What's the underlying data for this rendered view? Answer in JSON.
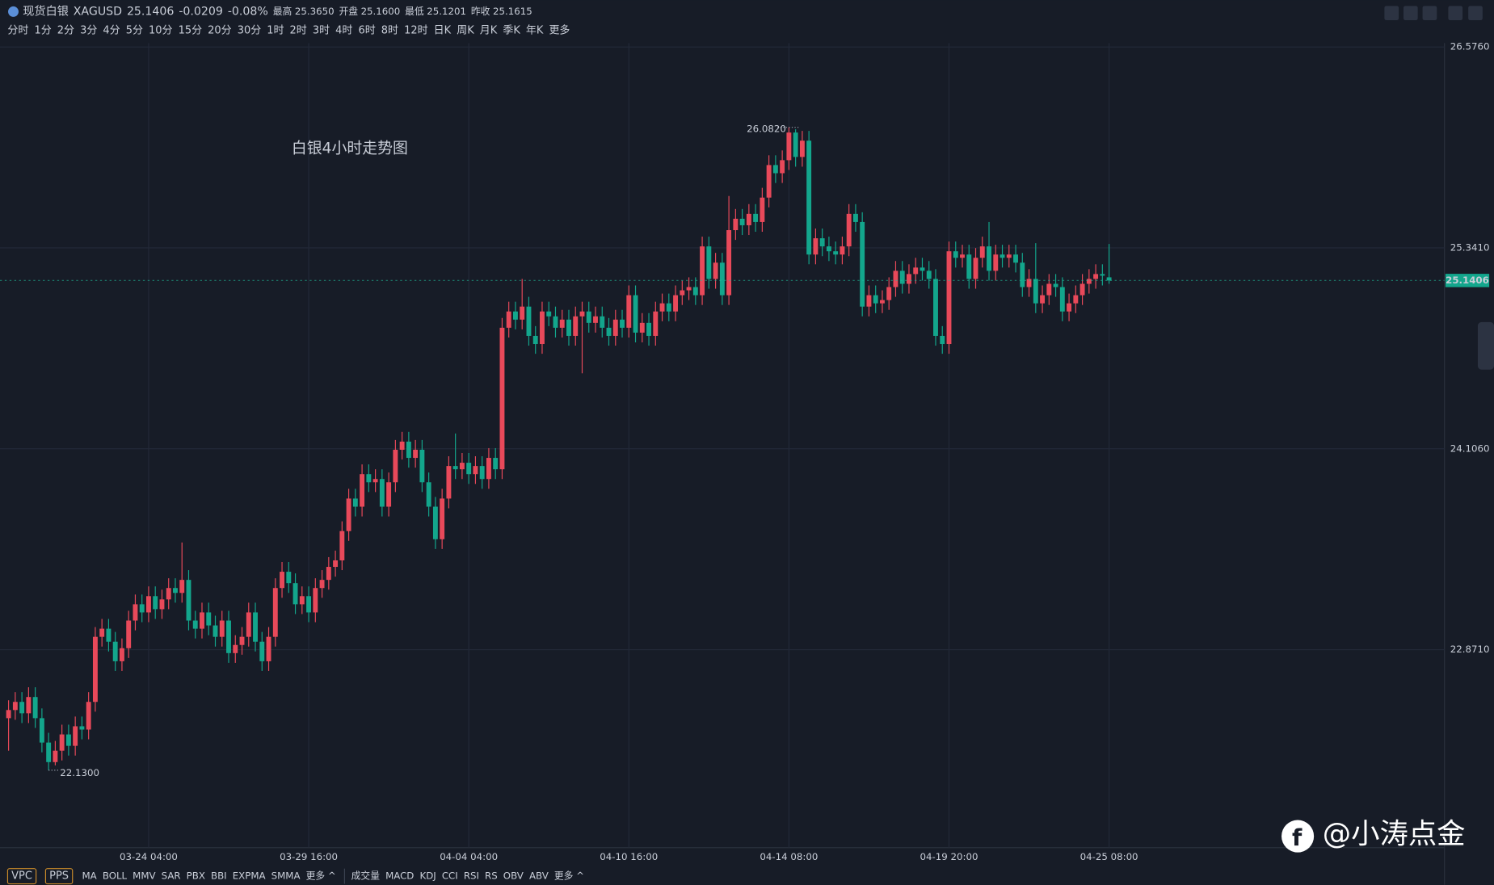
{
  "header": {
    "name": "现货白银",
    "symbol": "XAGUSD",
    "price": "25.1406",
    "change": "-0.0209",
    "change_pct": "-0.08%",
    "stats": [
      {
        "label": "最高",
        "value": "25.3650"
      },
      {
        "label": "开盘",
        "value": "25.1600"
      },
      {
        "label": "最低",
        "value": "25.1201"
      },
      {
        "label": "昨收",
        "value": "25.1615"
      }
    ]
  },
  "periods": {
    "items": [
      "分时",
      "1分",
      "2分",
      "3分",
      "4分",
      "5分",
      "10分",
      "15分",
      "20分",
      "30分",
      "1时",
      "2时",
      "3时",
      "4时",
      "6时",
      "8时",
      "12时",
      "日K",
      "周K",
      "月K",
      "季K",
      "年K",
      "更多"
    ],
    "active": "4时"
  },
  "indicators": {
    "boxed": [
      "VPC",
      "PPS"
    ],
    "main": [
      "MA",
      "BOLL",
      "MMV",
      "SAR",
      "PBX",
      "BBI",
      "EXPMA",
      "SMMA",
      "更多 ^"
    ],
    "sub": [
      "成交量",
      "MACD",
      "KDJ",
      "CCI",
      "RSI",
      "RS",
      "OBV",
      "ABV",
      "更多 ^"
    ]
  },
  "watermark": "@小涛点金",
  "chart_data": {
    "type": "candlestick",
    "annotation": "白银4小时走势图",
    "up_color": "#e8495a",
    "down_color": "#13a68c",
    "grid": true,
    "ylim": [
      21.654,
      26.6
    ],
    "yticks": [
      {
        "value": 26.576,
        "label": "26.5760"
      },
      {
        "value": 25.341,
        "label": "25.3410"
      },
      {
        "value": 24.106,
        "label": "24.1060"
      },
      {
        "value": 22.871,
        "label": "22.8710"
      }
    ],
    "price_line": {
      "value": 25.1406,
      "label": "25.1406"
    },
    "high_label": {
      "value": 26.082,
      "label": "26.0820"
    },
    "low_label": {
      "value": 22.13,
      "label": "22.1300"
    },
    "categories": [
      null,
      null,
      null,
      null,
      null,
      null,
      null,
      null,
      null,
      null,
      null,
      null,
      null,
      null,
      null,
      null,
      null,
      null,
      null,
      null,
      null,
      "03-24 04:00",
      null,
      null,
      null,
      null,
      null,
      null,
      null,
      null,
      null,
      null,
      null,
      null,
      null,
      null,
      null,
      null,
      null,
      null,
      null,
      null,
      null,
      null,
      null,
      "03-29 16:00",
      null,
      null,
      null,
      null,
      null,
      null,
      null,
      null,
      null,
      null,
      null,
      null,
      null,
      null,
      null,
      null,
      null,
      null,
      null,
      null,
      null,
      null,
      null,
      "04-04 04:00",
      null,
      null,
      null,
      null,
      null,
      null,
      null,
      null,
      null,
      null,
      null,
      null,
      null,
      null,
      null,
      null,
      null,
      null,
      null,
      null,
      null,
      null,
      null,
      "04-10 16:00",
      null,
      null,
      null,
      null,
      null,
      null,
      null,
      null,
      null,
      null,
      null,
      null,
      null,
      null,
      null,
      null,
      null,
      null,
      null,
      null,
      null,
      null,
      null,
      "04-14 08:00",
      null,
      null,
      null,
      null,
      null,
      null,
      null,
      null,
      null,
      null,
      null,
      null,
      null,
      null,
      null,
      null,
      null,
      null,
      null,
      null,
      null,
      null,
      null,
      "04-19 20:00",
      null,
      null,
      null,
      null,
      null,
      null,
      null,
      null,
      null,
      null,
      null,
      null,
      null,
      null,
      null,
      null,
      null,
      null,
      null,
      null,
      null,
      null,
      null,
      "04-25 08:00"
    ],
    "open": [
      22.45,
      22.5,
      22.55,
      22.48,
      22.58,
      22.45,
      22.3,
      22.18,
      22.25,
      22.35,
      22.28,
      22.4,
      22.38,
      22.55,
      22.95,
      23.0,
      22.92,
      22.8,
      22.88,
      23.05,
      23.15,
      23.1,
      23.2,
      23.12,
      23.18,
      23.25,
      23.22,
      23.3,
      23.05,
      23.0,
      23.1,
      23.02,
      22.95,
      23.05,
      22.85,
      22.9,
      22.95,
      23.1,
      22.92,
      22.8,
      22.95,
      23.25,
      23.35,
      23.28,
      23.15,
      23.2,
      23.1,
      23.25,
      23.3,
      23.38,
      23.42,
      23.6,
      23.8,
      23.75,
      23.95,
      23.9,
      23.92,
      23.75,
      23.9,
      24.1,
      24.15,
      24.05,
      24.1,
      23.9,
      23.75,
      23.55,
      23.8,
      24.0,
      23.98,
      24.02,
      23.95,
      24.0,
      23.92,
      24.05,
      23.98,
      24.85,
      24.95,
      24.9,
      24.98,
      24.8,
      24.75,
      24.95,
      24.92,
      24.85,
      24.9,
      24.8,
      24.92,
      24.95,
      24.88,
      24.92,
      24.85,
      24.8,
      24.9,
      24.85,
      25.05,
      24.82,
      24.88,
      24.8,
      24.95,
      25.0,
      24.95,
      25.05,
      25.08,
      25.1,
      25.05,
      25.35,
      25.15,
      25.25,
      25.05,
      25.45,
      25.52,
      25.48,
      25.55,
      25.5,
      25.65,
      25.85,
      25.8,
      25.88,
      26.05,
      25.9,
      26.0,
      25.3,
      25.4,
      25.35,
      25.32,
      25.3,
      25.35,
      25.55,
      25.5,
      24.98,
      25.05,
      25.0,
      25.02,
      25.1,
      25.2,
      25.12,
      25.18,
      25.22,
      25.2,
      25.15,
      24.8,
      24.75,
      25.32,
      25.28,
      25.3,
      25.15,
      25.28,
      25.35,
      25.2,
      25.3,
      25.28,
      25.3,
      25.25,
      25.1,
      25.15,
      25.0,
      25.05,
      25.12,
      25.1,
      24.95,
      25.0,
      25.05,
      25.12,
      25.15,
      25.18,
      25.16
    ],
    "high": [
      22.56,
      22.61,
      22.61,
      22.64,
      22.64,
      22.51,
      22.36,
      22.31,
      22.41,
      22.41,
      22.46,
      22.46,
      22.61,
      23.01,
      23.06,
      23.06,
      22.98,
      22.94,
      23.11,
      23.21,
      23.21,
      23.26,
      23.26,
      23.24,
      23.31,
      23.31,
      23.53,
      23.36,
      23.11,
      23.16,
      23.16,
      23.08,
      23.11,
      23.11,
      22.96,
      23.01,
      23.16,
      23.16,
      22.98,
      23.01,
      23.31,
      23.41,
      23.41,
      23.34,
      23.26,
      23.26,
      23.31,
      23.36,
      23.44,
      23.48,
      23.66,
      23.86,
      23.86,
      24.01,
      24.01,
      23.98,
      23.98,
      23.96,
      24.16,
      24.21,
      24.21,
      24.16,
      24.16,
      23.96,
      23.81,
      23.86,
      24.06,
      24.2,
      24.08,
      24.08,
      24.06,
      24.06,
      24.11,
      24.11,
      24.91,
      25.01,
      25.01,
      25.15,
      25.04,
      24.86,
      25.01,
      25.01,
      24.98,
      24.96,
      24.96,
      24.98,
      25.01,
      25.01,
      24.98,
      24.98,
      24.91,
      24.96,
      24.96,
      25.11,
      25.11,
      24.94,
      24.94,
      25.01,
      25.06,
      25.06,
      25.11,
      25.14,
      25.16,
      25.16,
      25.41,
      25.41,
      25.31,
      25.31,
      25.66,
      25.58,
      25.58,
      25.61,
      25.61,
      25.71,
      25.91,
      25.91,
      25.94,
      26.082,
      26.07,
      26.06,
      26.06,
      25.46,
      25.46,
      25.41,
      25.38,
      25.41,
      25.61,
      25.61,
      25.56,
      25.11,
      25.11,
      25.08,
      25.16,
      25.26,
      25.26,
      25.24,
      25.28,
      25.28,
      25.26,
      25.21,
      24.86,
      25.38,
      25.38,
      25.36,
      25.36,
      25.34,
      25.41,
      25.5,
      25.36,
      25.36,
      25.36,
      25.36,
      25.31,
      25.21,
      25.37,
      25.11,
      25.18,
      25.18,
      25.16,
      25.06,
      25.11,
      25.18,
      25.21,
      25.24,
      25.24,
      25.365
    ],
    "low": [
      22.25,
      22.44,
      22.42,
      22.42,
      22.39,
      22.24,
      22.13,
      22.16,
      22.19,
      22.22,
      22.22,
      22.32,
      22.32,
      22.49,
      22.89,
      22.86,
      22.74,
      22.74,
      22.82,
      22.99,
      23.04,
      23.04,
      23.06,
      23.06,
      23.12,
      23.16,
      23.16,
      22.99,
      22.94,
      22.94,
      22.96,
      22.89,
      22.89,
      22.79,
      22.79,
      22.84,
      22.89,
      22.86,
      22.74,
      22.74,
      22.89,
      23.19,
      23.22,
      23.09,
      23.09,
      23.04,
      23.04,
      23.19,
      23.24,
      23.32,
      23.36,
      23.54,
      23.69,
      23.69,
      23.84,
      23.84,
      23.69,
      23.69,
      23.84,
      24.04,
      23.99,
      23.99,
      23.84,
      23.69,
      23.49,
      23.49,
      23.74,
      23.92,
      23.92,
      23.89,
      23.89,
      23.86,
      23.86,
      23.92,
      23.92,
      24.79,
      24.84,
      24.84,
      24.74,
      24.69,
      24.69,
      24.86,
      24.79,
      24.79,
      24.74,
      24.74,
      24.57,
      24.82,
      24.82,
      24.79,
      24.74,
      24.74,
      24.79,
      24.79,
      24.76,
      24.76,
      24.74,
      24.74,
      24.89,
      24.89,
      24.89,
      24.99,
      25.02,
      24.99,
      24.99,
      25.09,
      25.09,
      24.99,
      24.99,
      25.39,
      25.42,
      25.42,
      25.44,
      25.44,
      25.59,
      25.74,
      25.74,
      25.82,
      25.84,
      25.84,
      25.24,
      25.24,
      25.29,
      25.26,
      25.24,
      25.24,
      25.29,
      25.44,
      24.92,
      24.92,
      24.94,
      24.94,
      24.96,
      25.04,
      25.06,
      25.06,
      25.12,
      25.14,
      25.09,
      24.74,
      24.69,
      24.69,
      25.22,
      25.22,
      25.09,
      25.09,
      25.22,
      25.14,
      25.14,
      25.22,
      25.22,
      25.19,
      25.04,
      25.04,
      24.94,
      24.94,
      24.99,
      25.04,
      24.89,
      24.89,
      24.94,
      24.99,
      25.06,
      25.09,
      25.11,
      25.1201
    ],
    "close": [
      22.5,
      22.55,
      22.48,
      22.58,
      22.45,
      22.3,
      22.18,
      22.25,
      22.35,
      22.28,
      22.4,
      22.38,
      22.55,
      22.95,
      23.0,
      22.92,
      22.8,
      22.88,
      23.05,
      23.15,
      23.1,
      23.2,
      23.12,
      23.18,
      23.25,
      23.22,
      23.3,
      23.05,
      23.0,
      23.1,
      23.02,
      22.95,
      23.05,
      22.85,
      22.9,
      22.95,
      23.1,
      22.92,
      22.8,
      22.95,
      23.25,
      23.35,
      23.28,
      23.15,
      23.2,
      23.1,
      23.25,
      23.3,
      23.38,
      23.42,
      23.6,
      23.8,
      23.75,
      23.95,
      23.9,
      23.92,
      23.75,
      23.9,
      24.1,
      24.15,
      24.05,
      24.1,
      23.9,
      23.75,
      23.55,
      23.8,
      24.0,
      23.98,
      24.02,
      23.95,
      24.0,
      23.92,
      24.05,
      23.98,
      24.85,
      24.95,
      24.9,
      24.98,
      24.8,
      24.75,
      24.95,
      24.92,
      24.85,
      24.9,
      24.8,
      24.92,
      24.95,
      24.88,
      24.92,
      24.85,
      24.8,
      24.9,
      24.85,
      25.05,
      24.82,
      24.88,
      24.8,
      24.95,
      25.0,
      24.95,
      25.05,
      25.08,
      25.1,
      25.05,
      25.35,
      25.15,
      25.25,
      25.05,
      25.45,
      25.52,
      25.48,
      25.55,
      25.5,
      25.65,
      25.85,
      25.8,
      25.88,
      26.05,
      25.9,
      26.0,
      25.3,
      25.4,
      25.35,
      25.32,
      25.3,
      25.35,
      25.55,
      25.5,
      24.98,
      25.05,
      25.0,
      25.02,
      25.1,
      25.2,
      25.12,
      25.18,
      25.22,
      25.2,
      25.15,
      24.8,
      24.75,
      25.32,
      25.28,
      25.3,
      25.15,
      25.28,
      25.35,
      25.2,
      25.3,
      25.28,
      25.3,
      25.25,
      25.1,
      25.15,
      25.0,
      25.05,
      25.12,
      25.1,
      24.95,
      25.0,
      25.05,
      25.12,
      25.15,
      25.18,
      25.17,
      25.1406
    ]
  }
}
